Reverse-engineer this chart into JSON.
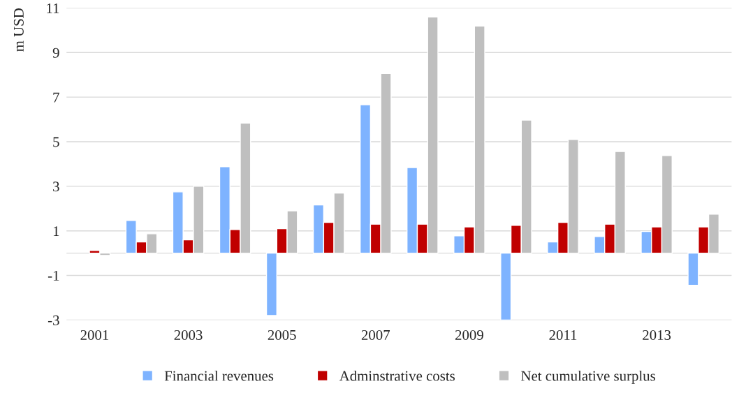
{
  "chart_data": {
    "type": "bar",
    "ylabel": "m USD",
    "categories": [
      "2001",
      null,
      "2003",
      null,
      "2005",
      null,
      "2007",
      null,
      "2009",
      null,
      "2011",
      null,
      "2013",
      null
    ],
    "series": [
      {
        "name": "Financial revenues",
        "color": "#7eb3ff",
        "values": [
          null,
          1.47,
          2.75,
          3.88,
          -2.8,
          2.16,
          6.66,
          3.84,
          0.78,
          -3.0,
          0.5,
          0.75,
          0.97,
          -1.44
        ]
      },
      {
        "name": "Adminstrative costs",
        "color": "#c00000",
        "values": [
          0.12,
          0.5,
          0.6,
          1.06,
          1.1,
          1.38,
          1.3,
          1.3,
          1.18,
          1.25,
          1.38,
          1.3,
          1.18,
          1.18
        ]
      },
      {
        "name": "Net cumulative surplus",
        "color": "#bfbfbf",
        "values": [
          -0.1,
          0.87,
          3.0,
          5.84,
          1.9,
          2.7,
          8.06,
          10.6,
          10.19,
          5.97,
          5.1,
          4.56,
          4.38,
          1.75
        ]
      }
    ],
    "ylim": [
      -3,
      11
    ],
    "yticks": [
      -3,
      -1,
      1,
      3,
      5,
      7,
      9,
      11
    ],
    "grid": "y",
    "legend": "bottom"
  }
}
